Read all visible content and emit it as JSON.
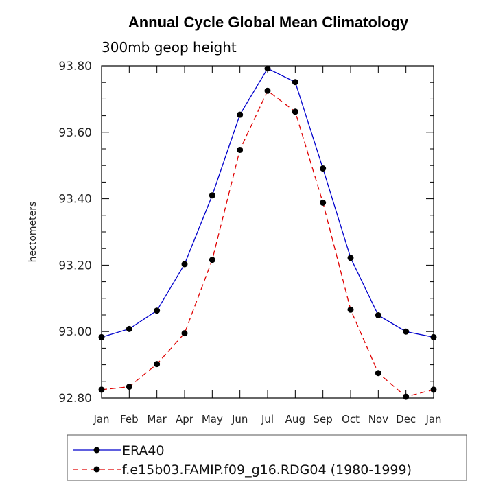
{
  "chart_data": {
    "type": "line",
    "title": "Annual Cycle Global Mean Climatology",
    "subtitle": "300mb geop height",
    "xlabel": "",
    "ylabel": "hectometers",
    "categories": [
      "Jan",
      "Feb",
      "Mar",
      "Apr",
      "May",
      "Jun",
      "Jul",
      "Aug",
      "Sep",
      "Oct",
      "Nov",
      "Dec",
      "Jan"
    ],
    "ylim": [
      92.8,
      93.8
    ],
    "yticks": [
      "92.80",
      "93.00",
      "93.20",
      "93.40",
      "93.60",
      "93.80"
    ],
    "ytick_values": [
      92.8,
      93.0,
      93.2,
      93.4,
      93.6,
      93.8
    ],
    "grid": false,
    "legend_position": "bottom",
    "series": [
      {
        "name": "ERA40",
        "color": "#0000cc",
        "dash": "solid",
        "marker": "filled-circle",
        "values": [
          92.983,
          93.008,
          93.063,
          93.203,
          93.41,
          93.653,
          93.792,
          93.751,
          93.491,
          93.222,
          93.049,
          93.0,
          92.983
        ]
      },
      {
        "name": "f.e15b03.FAMIP.f09_g16.RDG04 (1980-1999)",
        "color": "#e00000",
        "dash": "dashed",
        "marker": "filled-circle",
        "values": [
          92.825,
          92.834,
          92.902,
          92.995,
          93.216,
          93.547,
          93.725,
          93.662,
          93.388,
          93.066,
          92.875,
          92.804,
          92.825
        ]
      }
    ]
  }
}
